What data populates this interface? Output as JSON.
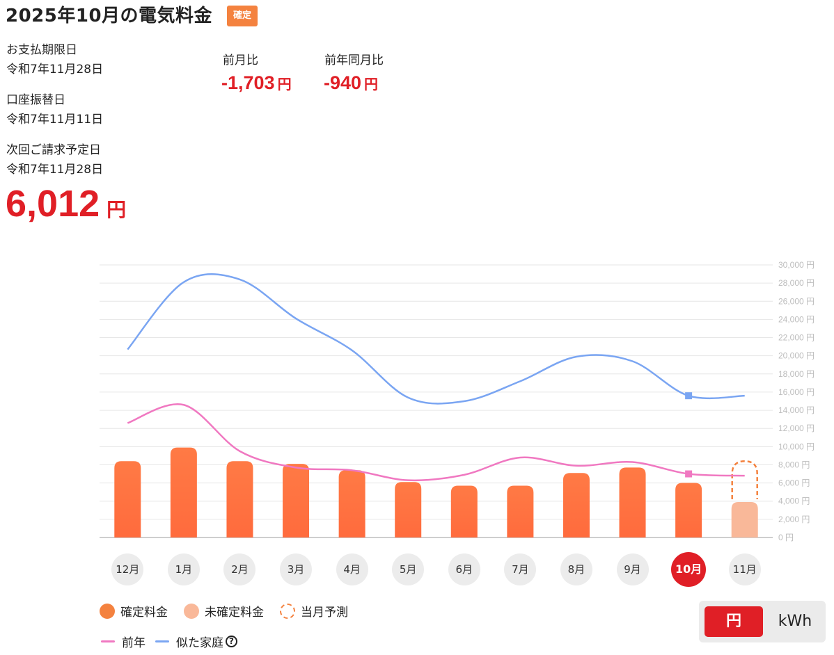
{
  "header": {
    "title": "2025年10月の電気料金",
    "badge": "確定"
  },
  "info": {
    "due_label": "お支払期限日",
    "due_value": "令和7年11月28日",
    "debit_label": "口座振替日",
    "debit_value": "令和7年11月11日",
    "next_label": "次回ご請求予定日",
    "next_value": "令和7年11月28日"
  },
  "compare": {
    "prev_month_label": "前月比",
    "prev_month_value": "-1,703",
    "prev_month_unit": "円",
    "prev_year_label": "前年同月比",
    "prev_year_value": "-940",
    "prev_year_unit": "円"
  },
  "total": {
    "value": "6,012",
    "unit": "円"
  },
  "colors": {
    "accent": "#e01f26",
    "confirmed": "#ff6b3d",
    "unconfirmed": "#f9b899",
    "forecast": "#f4823f",
    "prev_year": "#f078c1",
    "similar": "#7aa5f2"
  },
  "chart_data": {
    "type": "bar",
    "categories": [
      "12月",
      "1月",
      "2月",
      "3月",
      "4月",
      "5月",
      "6月",
      "7月",
      "8月",
      "9月",
      "10月",
      "11月"
    ],
    "selected": "10月",
    "series": [
      {
        "name": "確定料金",
        "type": "bar",
        "values": [
          8400,
          9900,
          8400,
          8100,
          7400,
          6100,
          5700,
          5700,
          7100,
          7700,
          6012,
          null
        ]
      },
      {
        "name": "未確定料金",
        "type": "bar",
        "values": [
          null,
          null,
          null,
          null,
          null,
          null,
          null,
          null,
          null,
          null,
          null,
          3900
        ]
      },
      {
        "name": "当月予測",
        "type": "bar-outline",
        "values": [
          null,
          null,
          null,
          null,
          null,
          null,
          null,
          null,
          null,
          null,
          null,
          8400
        ]
      },
      {
        "name": "前年",
        "type": "line",
        "values": [
          12600,
          14600,
          9500,
          7700,
          7400,
          6300,
          6900,
          8800,
          7900,
          8300,
          7000,
          6800
        ]
      },
      {
        "name": "似た家庭",
        "type": "line",
        "values": [
          20700,
          28100,
          28400,
          24100,
          20600,
          15400,
          15000,
          17200,
          19900,
          19400,
          15600,
          15600
        ]
      }
    ],
    "ylim": [
      0,
      30000
    ],
    "ytick_step": 2000,
    "ytick_labels": [
      "0 円",
      "2,000 円",
      "4,000 円",
      "6,000 円",
      "8,000 円",
      "10,000 円",
      "12,000 円",
      "14,000 円",
      "16,000 円",
      "18,000 円",
      "20,000 円",
      "22,000 円",
      "24,000 円",
      "26,000 円",
      "28,000 円",
      "30,000 円"
    ],
    "grid": true,
    "legend": "bottom"
  },
  "legend": {
    "confirmed": "確定料金",
    "unconfirmed": "未確定料金",
    "forecast": "当月予測",
    "prev_year": "前年",
    "similar": "似た家庭",
    "help_icon": "?"
  },
  "unit_toggle": {
    "yen": "円",
    "kwh": "kWh",
    "selected": "円"
  }
}
